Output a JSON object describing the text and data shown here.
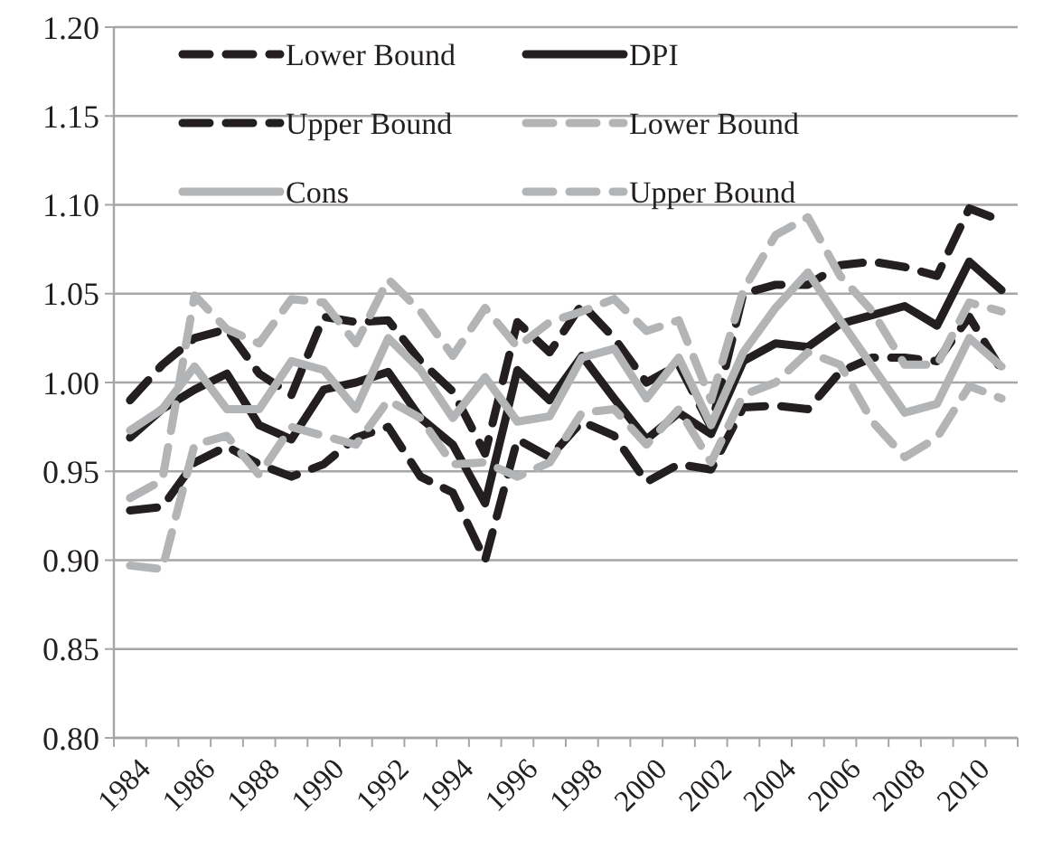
{
  "chart_data": {
    "type": "line",
    "categories": [
      "1984",
      null,
      "1986",
      null,
      "1988",
      null,
      "1990",
      null,
      "1992",
      null,
      "1994",
      null,
      "1996",
      null,
      "1998",
      null,
      "2000",
      null,
      "2002",
      null,
      "2004",
      null,
      "2006",
      null,
      "2008",
      null,
      "2010",
      null
    ],
    "series": [
      {
        "name": "Lower Bound",
        "color": "#231f20",
        "line_style": "dashed",
        "values": [
          0.928,
          0.93,
          0.955,
          0.964,
          0.954,
          0.947,
          0.954,
          0.969,
          0.975,
          0.947,
          0.938,
          0.9,
          0.968,
          0.958,
          0.978,
          0.97,
          0.944,
          0.954,
          0.951,
          0.986,
          0.987,
          0.985,
          1.006,
          1.014,
          1.014,
          1.012,
          1.037,
          1.007
        ]
      },
      {
        "name": "DPI",
        "color": "#231f20",
        "line_style": "solid",
        "values": [
          0.969,
          0.985,
          0.996,
          1.005,
          0.976,
          0.968,
          0.996,
          1.0,
          1.006,
          0.98,
          0.965,
          0.932,
          1.007,
          0.99,
          1.015,
          0.991,
          0.968,
          0.983,
          0.971,
          1.012,
          1.022,
          1.02,
          1.033,
          1.038,
          1.043,
          1.032,
          1.068,
          1.052
        ]
      },
      {
        "name": "Upper Bound",
        "color": "#231f20",
        "line_style": "dashed",
        "values": [
          0.99,
          1.01,
          1.025,
          1.03,
          1.005,
          0.993,
          1.037,
          1.034,
          1.035,
          1.012,
          0.995,
          0.96,
          1.034,
          1.017,
          1.044,
          1.025,
          1.0,
          1.01,
          0.975,
          1.05,
          1.055,
          1.055,
          1.066,
          1.068,
          1.065,
          1.06,
          1.098,
          1.091
        ]
      },
      {
        "name": "Lower Bound",
        "color": "#b3b4b6",
        "line_style": "dashed",
        "values": [
          0.897,
          0.895,
          0.965,
          0.97,
          0.948,
          0.975,
          0.97,
          0.965,
          0.99,
          0.98,
          0.954,
          0.955,
          0.947,
          0.955,
          0.983,
          0.985,
          0.965,
          0.985,
          0.955,
          0.993,
          1.0,
          1.017,
          1.01,
          0.978,
          0.958,
          0.969,
          0.998,
          0.991
        ]
      },
      {
        "name": "Cons",
        "color": "#b3b4b6",
        "line_style": "solid",
        "values": [
          0.973,
          0.985,
          1.009,
          0.985,
          0.985,
          1.012,
          1.007,
          0.985,
          1.025,
          1.007,
          0.98,
          1.003,
          0.978,
          0.981,
          1.014,
          1.019,
          0.991,
          1.014,
          0.976,
          1.017,
          1.042,
          1.062,
          1.035,
          1.009,
          0.983,
          0.988,
          1.025,
          1.009
        ]
      },
      {
        "name": "Upper Bound",
        "color": "#b3b4b6",
        "line_style": "dashed",
        "values": [
          0.935,
          0.945,
          1.049,
          1.03,
          1.022,
          1.047,
          1.045,
          1.022,
          1.058,
          1.04,
          1.015,
          1.042,
          1.02,
          1.034,
          1.04,
          1.047,
          1.029,
          1.035,
          0.99,
          1.052,
          1.083,
          1.093,
          1.06,
          1.04,
          1.01,
          1.01,
          1.045,
          1.04
        ]
      }
    ],
    "ylim": [
      0.8,
      1.2
    ],
    "yticks": [
      {
        "value": 0.8,
        "label": "0.80"
      },
      {
        "value": 0.85,
        "label": "0.85"
      },
      {
        "value": 0.9,
        "label": "0.90"
      },
      {
        "value": 0.95,
        "label": "0.95"
      },
      {
        "value": 1.0,
        "label": "1.00"
      },
      {
        "value": 1.05,
        "label": "1.05"
      },
      {
        "value": 1.1,
        "label": "1.10"
      },
      {
        "value": 1.15,
        "label": "1.15"
      },
      {
        "value": 1.2,
        "label": "1.20"
      }
    ],
    "grid": "y",
    "legend": "top",
    "marker": "none"
  }
}
